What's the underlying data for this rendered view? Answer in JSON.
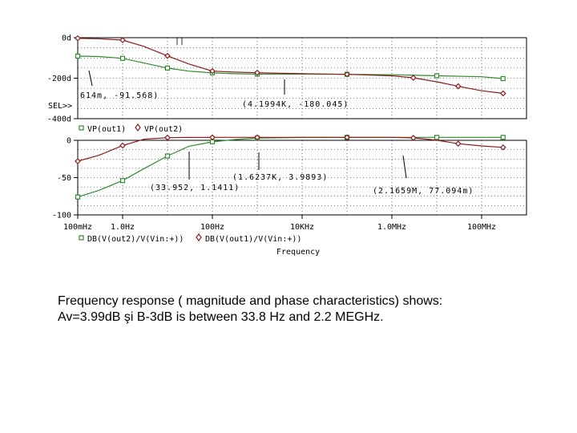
{
  "chart_data": [
    {
      "type": "line",
      "title": "",
      "xscale": "log",
      "xlim": [
        0.1,
        1000000000
      ],
      "ylim": [
        -400,
        0
      ],
      "y_tick_labels": [
        "0d",
        "-200d",
        "-400d"
      ],
      "y_tick_values": [
        0,
        -200,
        -400
      ],
      "sel_label": "SEL>>",
      "grid": true,
      "series": [
        {
          "name": "VP(out1)",
          "marker": "square",
          "color": "#2e8b2e",
          "x": [
            0.1,
            0.3,
            1,
            3,
            10,
            30,
            100,
            300,
            1000,
            10000,
            100000,
            1000000,
            10000000,
            100000000,
            300000000
          ],
          "y": [
            -91,
            -93,
            -102,
            -125,
            -150,
            -165,
            -174,
            -178,
            -180,
            -180,
            -181,
            -183,
            -188,
            -193,
            -202
          ]
        },
        {
          "name": "VP(out2)",
          "marker": "diamond",
          "color": "#8b1a1a",
          "x": [
            0.1,
            0.3,
            1,
            3,
            10,
            30,
            100,
            300,
            1000,
            10000,
            100000,
            1000000,
            3000000,
            10000000,
            30000000,
            100000000,
            300000000
          ],
          "y": [
            -3,
            -5,
            -12,
            -43,
            -90,
            -130,
            -165,
            -170,
            -173,
            -178,
            -181,
            -188,
            -198,
            -218,
            -240,
            -262,
            -275
          ]
        }
      ],
      "annotations": [
        {
          "text": "614m, -91.568)",
          "x": 0.614,
          "y": -91.568
        },
        {
          "text": "(4.1994K, -180.045)",
          "x": 4199.4,
          "y": -180.045
        }
      ],
      "cursor_marker": "||"
    },
    {
      "type": "line",
      "xscale": "log",
      "xlim": [
        0.1,
        1000000000
      ],
      "ylim": [
        -100,
        0
      ],
      "y_tick_labels": [
        "0",
        "-50",
        "-100"
      ],
      "y_tick_values": [
        0,
        -50,
        -100
      ],
      "x_tick_labels": [
        "100mHz",
        "1.0Hz",
        "100Hz",
        "10KHz",
        "1.0MHz",
        "100MHz"
      ],
      "x_tick_values": [
        0.1,
        1,
        100,
        10000,
        1000000,
        100000000
      ],
      "xlabel": "Frequency",
      "grid": true,
      "series": [
        {
          "name": "DB(V(out2)/V(Vin:+))",
          "marker": "square",
          "color": "#2e8b2e",
          "x": [
            0.1,
            0.3,
            1,
            3,
            10,
            30,
            100,
            300,
            1000,
            10000,
            100000,
            1000000,
            10000000,
            100000000,
            300000000
          ],
          "y": [
            -76,
            -67,
            -54,
            -38,
            -21,
            -8,
            -2,
            1,
            3,
            3.9,
            3.99,
            3.99,
            3.99,
            3.99,
            3.99
          ]
        },
        {
          "name": "DB(V(out1)/V(Vin:+))",
          "marker": "diamond",
          "color": "#8b1a1a",
          "x": [
            0.1,
            0.3,
            1,
            3,
            10,
            30,
            100,
            300,
            1000,
            10000,
            100000,
            1000000,
            3000000,
            10000000,
            30000000,
            100000000,
            300000000
          ],
          "y": [
            -28,
            -20,
            -7,
            1.5,
            3.6,
            3.9,
            3.99,
            3.99,
            3.99,
            3.99,
            3.99,
            3.95,
            3.3,
            0.077,
            -4.5,
            -7.5,
            -9.5
          ]
        }
      ],
      "annotations": [
        {
          "text": "(33.952, 1.1411)",
          "x": 33.952,
          "y": 1.1411
        },
        {
          "text": "(1.6237K, 3.9893)",
          "x": 1623.7,
          "y": 3.9893
        },
        {
          "text": "(2.1659M, 77.094m)",
          "x": 2165900,
          "y": 0.077094
        }
      ]
    }
  ],
  "caption": {
    "line1": "Frequency response ( magnitude and phase characteristics) shows:",
    "line2": "Av=3.99dB şi B-3dB is between 33.8 Hz and 2.2 MEGHz."
  }
}
